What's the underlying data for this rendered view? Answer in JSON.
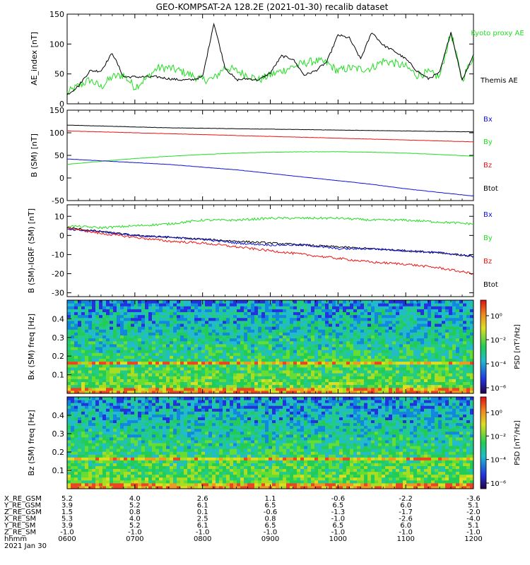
{
  "title": "GEO-KOMPSAT-2A 128.2E (2021-01-30) recalib dataset",
  "colors": {
    "black": "#000000",
    "green": "#22dd22",
    "red": "#ee1111",
    "blue": "#1111dd"
  },
  "chart_data": [
    {
      "type": "line",
      "ylabel": "AE_index [nT]",
      "ylim": [
        0,
        150
      ],
      "yticks": [
        "0",
        "50",
        "100",
        "150"
      ],
      "xlim": [
        "0600",
        "1200"
      ],
      "legend": [
        "Kyoto proxy AE",
        "Themis AE"
      ],
      "series": [
        {
          "name": "Kyoto proxy AE",
          "color": "#22dd22",
          "x": [
            "0600",
            "0610",
            "0620",
            "0630",
            "0640",
            "0650",
            "0700",
            "0710",
            "0720",
            "0730",
            "0740",
            "0750",
            "0800",
            "0810",
            "0820",
            "0830",
            "0840",
            "0850",
            "0900",
            "0910",
            "0920",
            "0930",
            "0940",
            "0950",
            "1000",
            "1010",
            "1020",
            "1030",
            "1040",
            "1050",
            "1100",
            "1110",
            "1120",
            "1130",
            "1140",
            "1150",
            "1200"
          ],
          "y": [
            18,
            30,
            40,
            28,
            45,
            48,
            28,
            42,
            60,
            60,
            55,
            48,
            40,
            42,
            62,
            55,
            48,
            40,
            48,
            55,
            62,
            68,
            72,
            68,
            55,
            60,
            58,
            60,
            72,
            68,
            62,
            48,
            52,
            45,
            120,
            40,
            80
          ]
        },
        {
          "name": "Themis AE",
          "color": "#000000",
          "x": [
            "0600",
            "0610",
            "0620",
            "0630",
            "0640",
            "0650",
            "0700",
            "0710",
            "0720",
            "0730",
            "0740",
            "0750",
            "0800",
            "0810",
            "0820",
            "0830",
            "0840",
            "0850",
            "0900",
            "0910",
            "0920",
            "0930",
            "0940",
            "0950",
            "1000",
            "1010",
            "1020",
            "1030",
            "1040",
            "1050",
            "1100",
            "1110",
            "1120",
            "1130",
            "1140",
            "1150",
            "1200"
          ],
          "y": [
            15,
            30,
            55,
            55,
            85,
            45,
            45,
            45,
            45,
            42,
            40,
            40,
            45,
            135,
            60,
            40,
            42,
            40,
            52,
            80,
            75,
            48,
            55,
            70,
            115,
            110,
            75,
            120,
            98,
            88,
            75,
            55,
            42,
            52,
            120,
            40,
            82
          ]
        }
      ]
    },
    {
      "type": "line",
      "ylabel": "B (SM) [nT]",
      "ylim": [
        -50,
        150
      ],
      "yticks": [
        "-50",
        "0",
        "50",
        "100",
        "150"
      ],
      "xlim": [
        "0600",
        "1200"
      ],
      "legend": [
        "Bx",
        "By",
        "Bz",
        "Btot"
      ],
      "series": [
        {
          "name": "Btot",
          "color": "#000000",
          "x": [
            "0600",
            "0630",
            "0700",
            "0730",
            "0800",
            "0830",
            "0900",
            "0930",
            "1000",
            "1030",
            "1100",
            "1130",
            "1200"
          ],
          "y": [
            117,
            115,
            113,
            111,
            110,
            109,
            108,
            107,
            106,
            105,
            104,
            103,
            102
          ]
        },
        {
          "name": "Bz",
          "color": "#ee1111",
          "x": [
            "0600",
            "0630",
            "0700",
            "0730",
            "0800",
            "0830",
            "0900",
            "0930",
            "1000",
            "1030",
            "1100",
            "1130",
            "1200"
          ],
          "y": [
            104,
            102,
            100,
            98,
            96,
            94,
            92,
            90,
            88,
            86,
            84,
            82,
            80
          ]
        },
        {
          "name": "By",
          "color": "#22dd22",
          "x": [
            "0600",
            "0630",
            "0700",
            "0730",
            "0800",
            "0830",
            "0900",
            "0930",
            "1000",
            "1030",
            "1100",
            "1130",
            "1200"
          ],
          "y": [
            30,
            37,
            43,
            48,
            52,
            55,
            57,
            58,
            58,
            57,
            55,
            52,
            48
          ]
        },
        {
          "name": "Bx",
          "color": "#1111dd",
          "x": [
            "0600",
            "0630",
            "0700",
            "0730",
            "0800",
            "0830",
            "0900",
            "0930",
            "1000",
            "1030",
            "1100",
            "1130",
            "1200"
          ],
          "y": [
            42,
            38,
            34,
            30,
            24,
            18,
            10,
            2,
            -6,
            -14,
            -24,
            -32,
            -40
          ]
        }
      ]
    },
    {
      "type": "line",
      "ylabel": "B (SM)-IGRF (SM) [nT]",
      "ylim": [
        -32,
        16
      ],
      "yticks": [
        "-30",
        "-20",
        "-10",
        "0",
        "10"
      ],
      "xlim": [
        "0600",
        "1200"
      ],
      "legend": [
        "Bx",
        "By",
        "Bz",
        "Btot"
      ],
      "series": [
        {
          "name": "By",
          "color": "#22dd22",
          "x": [
            "0600",
            "0630",
            "0700",
            "0730",
            "0800",
            "0830",
            "0900",
            "0930",
            "1000",
            "1030",
            "1100",
            "1130",
            "1200"
          ],
          "y": [
            5,
            4,
            5,
            6,
            8,
            8,
            9,
            9,
            9,
            8,
            8,
            7,
            6
          ]
        },
        {
          "name": "Btot",
          "color": "#000000",
          "x": [
            "0600",
            "0630",
            "0700",
            "0730",
            "0800",
            "0830",
            "0900",
            "0930",
            "1000",
            "1030",
            "1100",
            "1130",
            "1200"
          ],
          "y": [
            4,
            2,
            0,
            -1,
            -2,
            -3,
            -4,
            -5,
            -6,
            -7,
            -8,
            -9,
            -11
          ]
        },
        {
          "name": "Bx",
          "color": "#1111dd",
          "x": [
            "0600",
            "0630",
            "0700",
            "0730",
            "0800",
            "0830",
            "0900",
            "0930",
            "1000",
            "1030",
            "1100",
            "1130",
            "1200"
          ],
          "y": [
            3,
            2,
            0,
            -1,
            -2,
            -4,
            -5,
            -5,
            -7,
            -7,
            -8,
            -9,
            -11
          ]
        },
        {
          "name": "Bz",
          "color": "#ee1111",
          "x": [
            "0600",
            "0630",
            "0700",
            "0730",
            "0800",
            "0830",
            "0900",
            "0930",
            "1000",
            "1030",
            "1100",
            "1130",
            "1200"
          ],
          "y": [
            4,
            1,
            -1,
            -3,
            -4,
            -6,
            -8,
            -10,
            -12,
            -14,
            -15,
            -17,
            -20
          ]
        }
      ]
    },
    {
      "type": "heatmap",
      "ylabel": "Bx (SM) freq [Hz]",
      "ylim": [
        0,
        0.5
      ],
      "yticks": [
        "0.1",
        "0.2",
        "0.3",
        "0.4"
      ],
      "xlim": [
        "0600",
        "1200"
      ],
      "colorbar_label": "PSD [nT²/Hz]",
      "colorbar_ticks": [
        "10⁰",
        "10⁻²",
        "10⁻⁴",
        "10⁻⁶"
      ],
      "line_frequency_hz": 0.165
    },
    {
      "type": "heatmap",
      "ylabel": "Bz (SM) freq [Hz]",
      "ylim": [
        0,
        0.5
      ],
      "yticks": [
        "0.1",
        "0.2",
        "0.3",
        "0.4"
      ],
      "xlim": [
        "0600",
        "1200"
      ],
      "colorbar_label": "PSD [nT²/Hz]",
      "colorbar_ticks": [
        "10⁰",
        "10⁻²",
        "10⁻⁴",
        "10⁻⁶"
      ],
      "line_frequency_hz": 0.165
    }
  ],
  "ephemeris": {
    "row_labels": [
      "X_RE_GSM",
      "Y_RE_GSM",
      "Z_RE_GSM",
      "X_RE_SM",
      "Y_RE_SM",
      "Z_RE_SM",
      "hhmm"
    ],
    "columns": [
      [
        "5.2",
        "3.9",
        "1.5",
        "5.3",
        "3.9",
        "-1.0",
        "0600"
      ],
      [
        "4.0",
        "5.2",
        "0.8",
        "4.0",
        "5.2",
        "-1.0",
        "0700"
      ],
      [
        "2.6",
        "6.1",
        "0.1",
        "2.5",
        "6.1",
        "-1.0",
        "0800"
      ],
      [
        "1.1",
        "6.5",
        "-0.6",
        "0.8",
        "6.5",
        "-1.0",
        "0900"
      ],
      [
        "-0.6",
        "6.5",
        "-1.3",
        "-1.0",
        "6.5",
        "-1.0",
        "1000"
      ],
      [
        "-2.2",
        "6.0",
        "-1.7",
        "-2.6",
        "6.0",
        "-1.0",
        "1100"
      ],
      [
        "-3.6",
        "5.1",
        "-2.0",
        "-4.0",
        "5.1",
        "-1.0",
        "1200"
      ]
    ],
    "date": "2021 Jan 30"
  }
}
